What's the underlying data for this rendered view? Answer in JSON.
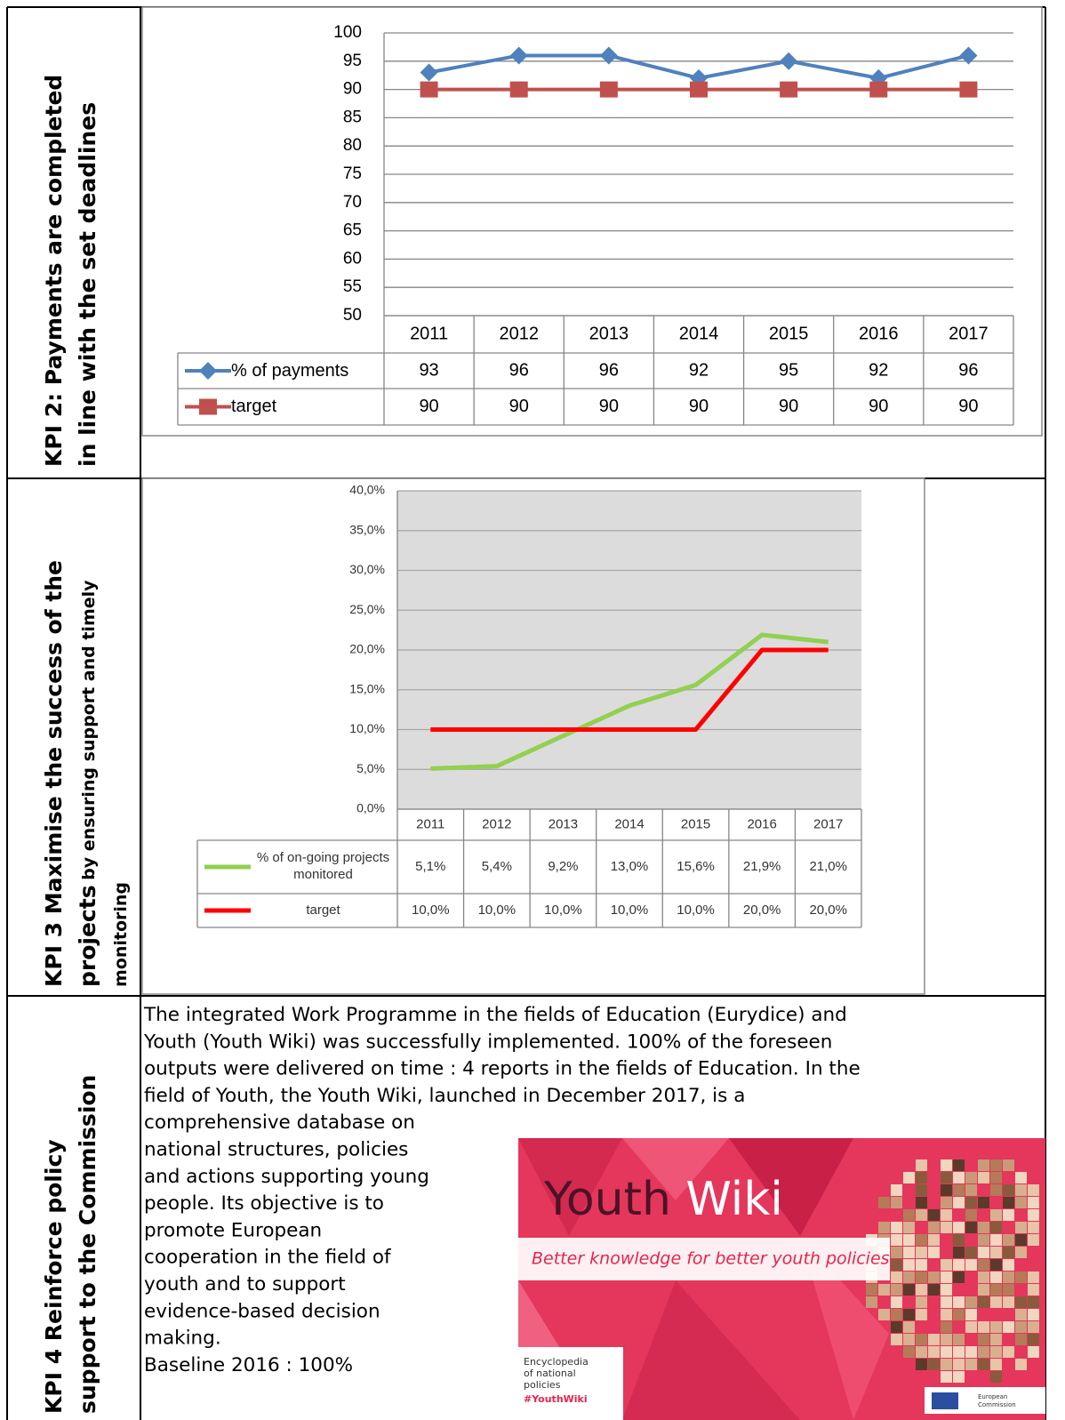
{
  "rows": [
    {
      "label_lines": [
        [
          "KPI 2: Payments are completed"
        ],
        [
          "in line with the set deadlines"
        ]
      ]
    },
    {
      "label_lines": [
        [
          "KPI 3 Maximise the success of the"
        ],
        [
          "projects",
          "by ensuring support and timely"
        ],
        [
          "monitoring"
        ]
      ]
    },
    {
      "label_lines": [
        [
          "KPI 4 Reinforce policy"
        ],
        [
          "support to the Commission"
        ]
      ]
    }
  ],
  "chart_data": [
    {
      "type": "line",
      "categories": [
        "2011",
        "2012",
        "2013",
        "2014",
        "2015",
        "2016",
        "2017"
      ],
      "series": [
        {
          "name": "% of payments",
          "color": "#4f81bd",
          "marker": "diamond",
          "values": [
            93,
            96,
            96,
            92,
            95,
            92,
            96
          ]
        },
        {
          "name": "target",
          "color": "#c0504d",
          "marker": "square",
          "values": [
            90,
            90,
            90,
            90,
            90,
            90,
            90
          ]
        }
      ],
      "ylim": [
        50,
        100
      ],
      "yticks": [
        50,
        55,
        60,
        65,
        70,
        75,
        80,
        85,
        90,
        95,
        100
      ],
      "grid": true
    },
    {
      "type": "line",
      "categories": [
        "2011",
        "2012",
        "2013",
        "2014",
        "2015",
        "2016",
        "2017"
      ],
      "series": [
        {
          "name": "% of on-going projects monitored",
          "color": "#92d050",
          "values": [
            5.1,
            5.4,
            9.2,
            13.0,
            15.6,
            21.9,
            21.0
          ],
          "value_labels": [
            "5,1%",
            "5,4%",
            "9,2%",
            "13,0%",
            "15,6%",
            "21,9%",
            "21,0%"
          ]
        },
        {
          "name": "target",
          "color": "#ff0000",
          "values": [
            10,
            10,
            10,
            10,
            10,
            20,
            20
          ],
          "value_labels": [
            "10,0%",
            "10,0%",
            "10,0%",
            "10,0%",
            "10,0%",
            "20,0%",
            "20,0%"
          ]
        }
      ],
      "ylim": [
        0,
        40
      ],
      "yticks": [
        {
          "value": 0,
          "label": "0,0%"
        },
        {
          "value": 5,
          "label": "5,0%"
        },
        {
          "value": 10,
          "label": "10,0%"
        },
        {
          "value": 15,
          "label": "15,0%"
        },
        {
          "value": 20,
          "label": "20,0%"
        },
        {
          "value": 25,
          "label": "25,0%"
        },
        {
          "value": 30,
          "label": "30,0%"
        },
        {
          "value": 35,
          "label": "35,0%"
        },
        {
          "value": 40,
          "label": "40,0%"
        }
      ],
      "grid": true
    }
  ],
  "text": {
    "lines": [
      "The integrated Work Programme in the fields of Education (Eurydice) and",
      "Youth (Youth Wiki) was successfully implemented. 100% of the foreseen",
      "outputs were delivered on time : 4 reports in the fields of Education. In the",
      "field of Youth, the Youth Wiki, launched in December 2017, is a",
      "comprehensive database on",
      "national structures, policies",
      "and actions supporting young",
      "people. Its objective is to",
      "promote European",
      "cooperation in the field of",
      "youth and to support",
      "evidence-based decision",
      "making.",
      "Baseline 2016 : 100%"
    ]
  },
  "image": {
    "title_dark": "Youth",
    "title_light": "Wiki",
    "tagline": "Better knowledge for better youth policies",
    "box_lines": [
      "Encyclopedia",
      "of national",
      "policies"
    ],
    "hashtag": "#YouthWiki",
    "ec_lines": [
      "European",
      "Commission"
    ]
  }
}
